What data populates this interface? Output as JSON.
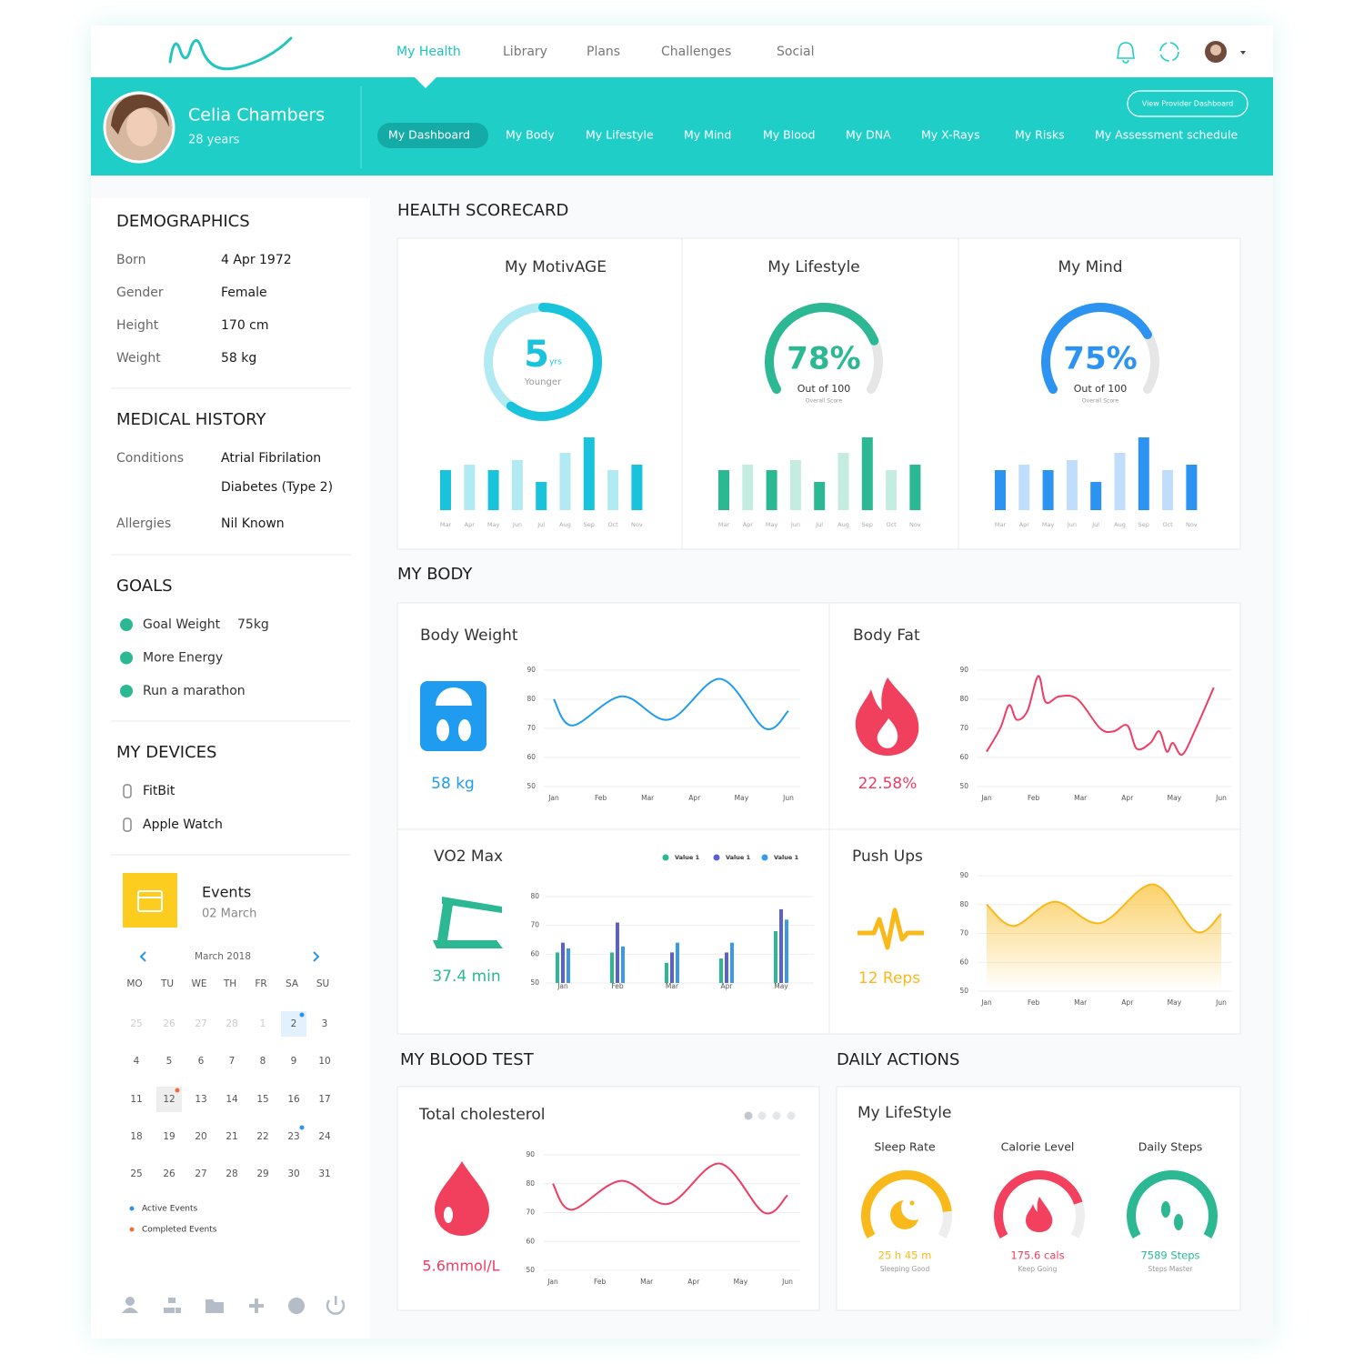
{
  "nav": {
    "menu": [
      "My Health",
      "Library",
      "Plans",
      "Challenges",
      "Social"
    ]
  },
  "profile": {
    "name": "Celia Chambers",
    "age": "28 years"
  },
  "tabs": [
    "My Dashboard",
    "My Body",
    "My Lifestyle",
    "My Mind",
    "My Blood",
    "My DNA",
    "My X-Rays",
    "My Risks",
    "My Assessment schedule"
  ],
  "provider_button": "View Provider Dashboard",
  "sidebar": {
    "demographics": {
      "title": "DEMOGRAPHICS",
      "rows": [
        {
          "label": "Born",
          "value": "4 Apr 1972"
        },
        {
          "label": "Gender",
          "value": "Female"
        },
        {
          "label": "Height",
          "value": "170 cm"
        },
        {
          "label": "Weight",
          "value": "58 kg"
        }
      ]
    },
    "medical_history": {
      "title": "MEDICAL HISTORY",
      "rows": [
        {
          "label": "Conditions",
          "values": [
            "Atrial Fibrilation",
            "Diabetes (Type 2)"
          ]
        },
        {
          "label": "Allergies",
          "values": [
            "Nil Known"
          ]
        }
      ]
    },
    "goals": {
      "title": "GOALS",
      "color": "#2bb893",
      "items": [
        {
          "text": "Goal Weight",
          "detail": "75kg"
        },
        {
          "text": "More Energy"
        },
        {
          "text": "Run a marathon"
        }
      ]
    },
    "devices": {
      "title": "MY DEVICES",
      "items": [
        "FitBit",
        "Apple Watch"
      ]
    },
    "events": {
      "title": "Events",
      "date": "02 March",
      "month": "March 2018",
      "weekdays": [
        "MO",
        "TU",
        "WE",
        "TH",
        "FR",
        "SA",
        "SU"
      ],
      "weeks": [
        [
          25,
          26,
          27,
          28,
          1,
          2,
          3
        ],
        [
          4,
          5,
          6,
          7,
          8,
          9,
          10
        ],
        [
          11,
          12,
          13,
          14,
          15,
          16,
          17
        ],
        [
          18,
          19,
          20,
          21,
          22,
          23,
          24
        ],
        [
          25,
          26,
          27,
          28,
          29,
          30,
          31
        ]
      ],
      "leading_muted": 5,
      "selected_day": 2,
      "today": 12,
      "active_events": [
        2,
        23
      ],
      "completed_events": [
        12
      ],
      "legend": [
        {
          "name": "Active Events",
          "color": "#2c94f0"
        },
        {
          "name": "Completed Events",
          "color": "#f26b3a"
        }
      ]
    }
  },
  "scorecard": {
    "title": "HEALTH SCORECARD",
    "cards": [
      {
        "title": "My MotivAGE",
        "type": "ring",
        "value": 5,
        "unit": "yrs",
        "caption": "Younger",
        "progress": 60,
        "colors": [
          "#19c3dc",
          "#b2eaf3"
        ],
        "categories": [
          "Mar",
          "Apr",
          "May",
          "Jun",
          "Jul",
          "Aug",
          "Sep",
          "Oct",
          "Nov"
        ],
        "values": [
          44,
          50,
          44,
          55,
          31,
          63,
          80,
          44,
          50
        ]
      },
      {
        "title": "My Lifestyle",
        "type": "gauge",
        "value": 78,
        "value_label": "78%",
        "caption": "Out of 100",
        "subcaption": "Overall Score",
        "colors": [
          "#2bb893",
          "#c5ece1"
        ],
        "categories": [
          "Mar",
          "Apr",
          "May",
          "Jun",
          "Jul",
          "Aug",
          "Sep",
          "Oct",
          "Nov"
        ],
        "values": [
          44,
          50,
          44,
          55,
          31,
          63,
          80,
          44,
          50
        ]
      },
      {
        "title": "My Mind",
        "type": "gauge",
        "value": 75,
        "value_label": "75%",
        "caption": "Out of 100",
        "subcaption": "Overall Score",
        "colors": [
          "#2c94f0",
          "#c0ddfb"
        ],
        "categories": [
          "Mar",
          "Apr",
          "May",
          "Jun",
          "Jul",
          "Aug",
          "Sep",
          "Oct",
          "Nov"
        ],
        "values": [
          44,
          50,
          44,
          55,
          31,
          63,
          80,
          44,
          50
        ]
      }
    ]
  },
  "my_body": {
    "title": "MY BODY",
    "charts": [
      {
        "title": "Body Weight",
        "type": "line",
        "reading": "58 kg",
        "color": "#1f9cf0",
        "xlim": [
          0,
          5
        ],
        "xticks": [
          {
            "value": 0,
            "label": "Jan"
          },
          {
            "value": 1,
            "label": "Feb"
          },
          {
            "value": 2,
            "label": "Mar"
          },
          {
            "value": 3,
            "label": "Apr"
          },
          {
            "value": 4,
            "label": "May"
          },
          {
            "value": 5,
            "label": "Jun"
          }
        ],
        "ylim": [
          50,
          90
        ],
        "yticks": [
          50,
          60,
          70,
          80,
          90
        ],
        "x": [
          0,
          0.4,
          1.45,
          2.45,
          3.55,
          4.5,
          5
        ],
        "values": [
          80,
          71,
          81,
          73,
          87,
          70,
          76
        ]
      },
      {
        "title": "Body Fat",
        "type": "line",
        "reading": "22.58%",
        "color": "#ee3c63",
        "xlim": [
          0,
          5
        ],
        "xticks": [
          {
            "value": 0,
            "label": "Jan"
          },
          {
            "value": 1,
            "label": "Feb"
          },
          {
            "value": 2,
            "label": "Mar"
          },
          {
            "value": 3,
            "label": "Apr"
          },
          {
            "value": 4,
            "label": "May"
          },
          {
            "value": 5,
            "label": "Jun"
          }
        ],
        "ylim": [
          50,
          90
        ],
        "yticks": [
          50,
          60,
          70,
          80,
          90
        ],
        "x": [
          0,
          0.29,
          0.48,
          0.64,
          0.87,
          1.1,
          1.26,
          1.55,
          1.94,
          2.42,
          2.71,
          3.0,
          3.2,
          3.49,
          3.68,
          3.84,
          3.97,
          4.17,
          4.46,
          4.84
        ],
        "values": [
          62,
          70,
          78,
          73,
          76,
          88,
          79,
          81,
          80,
          70,
          69,
          71,
          63,
          65,
          69,
          62,
          65,
          61,
          70,
          84
        ]
      },
      {
        "title": "VO2 Max",
        "type": "bar",
        "reading": "37.4 min",
        "categories": [
          "Jan",
          "Feb",
          "Mar",
          "Apr",
          "May"
        ],
        "ylim": [
          50,
          80
        ],
        "yticks": [
          50,
          60,
          70,
          80
        ],
        "series": [
          {
            "name": "Value 1",
            "color": "#2bb893",
            "values": [
              60.6,
              60.6,
              57,
              58.5,
              68
            ]
          },
          {
            "name": "Value 1",
            "color": "#5c5fd0",
            "values": [
              64,
              71,
              60.6,
              60.6,
              75.6
            ]
          },
          {
            "name": "Value 1",
            "color": "#3a9ae8",
            "values": [
              62,
              62.7,
              64,
              64,
              72
            ]
          }
        ]
      },
      {
        "title": "Push Ups",
        "type": "area",
        "reading": "12 Reps",
        "color": "#f9b91a",
        "xlim": [
          0,
          5
        ],
        "xticks": [
          {
            "value": 0,
            "label": "Jan"
          },
          {
            "value": 1,
            "label": "Feb"
          },
          {
            "value": 2,
            "label": "Mar"
          },
          {
            "value": 3,
            "label": "Apr"
          },
          {
            "value": 4,
            "label": "May"
          },
          {
            "value": 5,
            "label": "Jun"
          }
        ],
        "ylim": [
          50,
          90
        ],
        "yticks": [
          50,
          60,
          70,
          80,
          90
        ],
        "x": [
          0,
          0.58,
          1.45,
          2.42,
          3.55,
          4.46,
          5
        ],
        "values": [
          80,
          72.6,
          81,
          73.6,
          87,
          70.6,
          76.8
        ]
      }
    ]
  },
  "blood_test": {
    "title": "MY BLOOD TEST",
    "chart": {
      "title": "Total cholesterol",
      "type": "line",
      "reading": "5.6mmol/L",
      "color": "#ee3c63",
      "xlim": [
        0,
        5
      ],
      "xticks": [
        {
          "value": 0,
          "label": "Jan"
        },
        {
          "value": 1,
          "label": "Feb"
        },
        {
          "value": 2,
          "label": "Mar"
        },
        {
          "value": 3,
          "label": "Apr"
        },
        {
          "value": 4,
          "label": "May"
        },
        {
          "value": 5,
          "label": "Jun"
        }
      ],
      "ylim": [
        50,
        90
      ],
      "yticks": [
        50,
        60,
        70,
        80,
        90
      ],
      "x": [
        0,
        0.4,
        1.45,
        2.45,
        3.55,
        4.5,
        5
      ],
      "values": [
        80,
        71,
        81,
        73,
        87,
        70,
        76
      ]
    }
  },
  "daily_actions": {
    "title": "DAILY ACTIONS",
    "card_title": "My LifeStyle",
    "gauges": [
      {
        "title": "Sleep Rate",
        "value": "25 h 45 m",
        "caption": "Sleeping Good",
        "progress": 85,
        "color": "#f9b91a"
      },
      {
        "title": "Calorie Level",
        "value": "175.6 cals",
        "caption": "Keep Going",
        "progress": 80,
        "color": "#f2405e"
      },
      {
        "title": "Daily Steps",
        "value": "7589 Steps",
        "caption": "Steps Master",
        "progress": 100,
        "color": "#2bb893"
      }
    ]
  }
}
